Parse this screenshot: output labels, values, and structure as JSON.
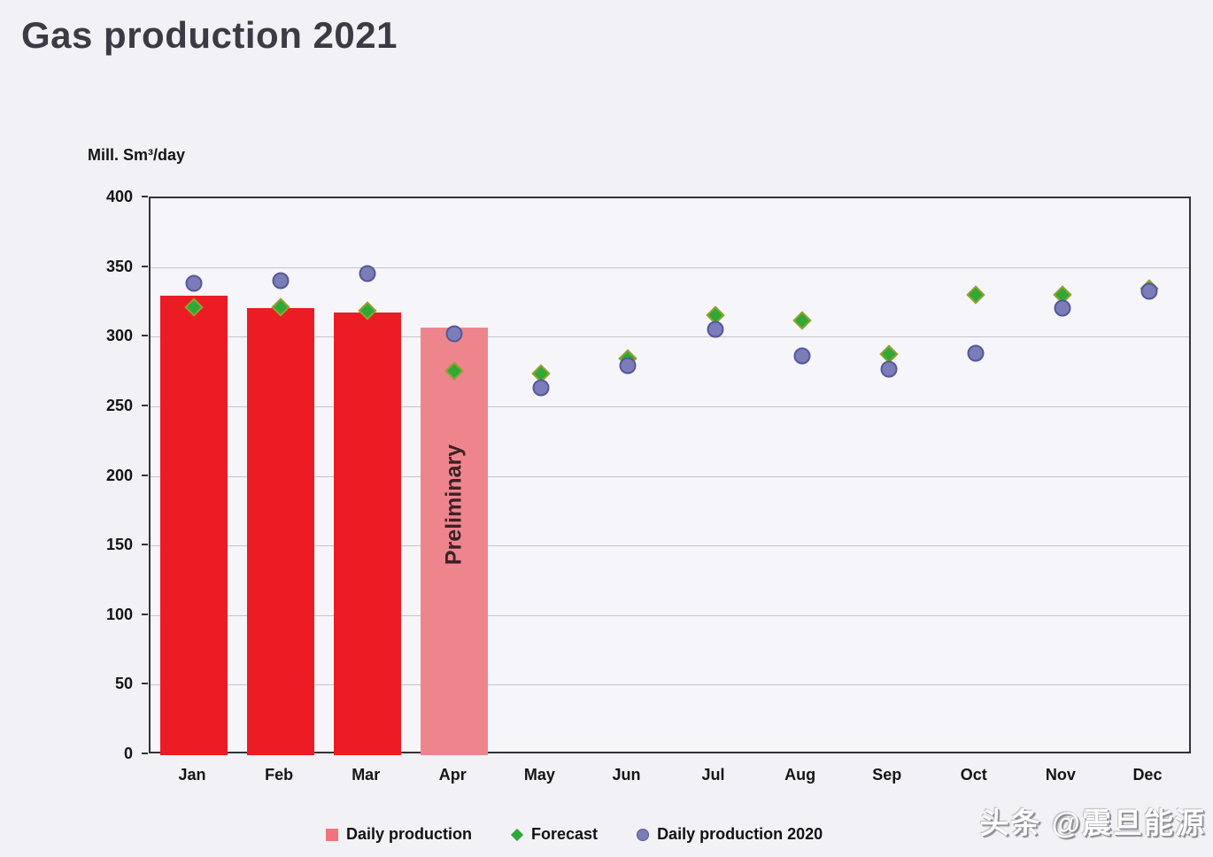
{
  "page": {
    "title": "Gas production 2021",
    "watermark": "头条 @震旦能源"
  },
  "chart_data": {
    "type": "bar",
    "title": "Gas production 2021",
    "unit_label": "Mill. Sm³/day",
    "xlabel": "",
    "ylabel": "Mill. Sm³/day",
    "ylim": [
      0,
      400
    ],
    "y_ticks": [
      0,
      50,
      100,
      150,
      200,
      250,
      300,
      350,
      400
    ],
    "grid": "horizontal",
    "legend_position": "bottom",
    "categories": [
      "Jan",
      "Feb",
      "Mar",
      "Apr",
      "May",
      "Jun",
      "Jul",
      "Aug",
      "Sep",
      "Oct",
      "Nov",
      "Dec"
    ],
    "series": [
      {
        "name": "Daily production",
        "type": "bar",
        "values": [
          330,
          321,
          318,
          307,
          null,
          null,
          null,
          null,
          null,
          null,
          null,
          null
        ],
        "preliminary_index": 3,
        "preliminary_label": "Preliminary"
      },
      {
        "name": "Forecast",
        "type": "scatter-diamond",
        "values": [
          322,
          322,
          319,
          276,
          274,
          285,
          316,
          312,
          288,
          331,
          331,
          335
        ]
      },
      {
        "name": "Daily production 2020",
        "type": "scatter-circle",
        "values": [
          339,
          341,
          346,
          303,
          264,
          280,
          306,
          287,
          277,
          289,
          321,
          333
        ]
      }
    ],
    "colors": {
      "bar": "#ec1c24",
      "bar_preliminary": "#ee858d",
      "forecast": "#2fa838",
      "production_2020": "#7b7db9",
      "legend_square": "#f2737b"
    }
  },
  "legend": {
    "items": [
      {
        "label": "Daily production",
        "marker": "square"
      },
      {
        "label": "Forecast",
        "marker": "diamond"
      },
      {
        "label": "Daily production 2020",
        "marker": "circle"
      }
    ]
  }
}
